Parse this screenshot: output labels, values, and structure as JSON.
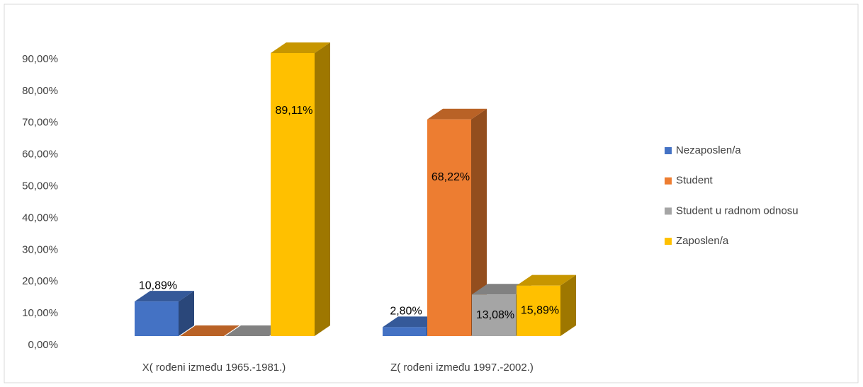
{
  "chart_data": {
    "type": "bar3d",
    "categories": [
      "X( rođeni između 1965.-1981.)",
      "Z( rođeni između 1997.-2002.)"
    ],
    "series": [
      {
        "name": "Nezaposlen/a",
        "color": "#4472c4",
        "values": [
          10.89,
          2.8
        ],
        "value_labels": [
          "10,89%",
          "2,80%"
        ]
      },
      {
        "name": "Student",
        "color": "#ed7d31",
        "values": [
          0,
          68.22
        ],
        "value_labels": [
          null,
          "68,22%"
        ]
      },
      {
        "name": "Student u radnom odnosu",
        "color": "#a5a5a5",
        "values": [
          0,
          13.08
        ],
        "value_labels": [
          null,
          "13,08%"
        ]
      },
      {
        "name": "Zaposlen/a",
        "color": "#ffc000",
        "values": [
          89.11,
          15.89
        ],
        "value_labels": [
          "89,11%",
          "15,89%"
        ]
      }
    ],
    "ylim": [
      0,
      90
    ],
    "yticks": [
      {
        "value": 0,
        "label": "0,00%"
      },
      {
        "value": 10,
        "label": "10,00%"
      },
      {
        "value": 20,
        "label": "20,00%"
      },
      {
        "value": 30,
        "label": "30,00%"
      },
      {
        "value": 40,
        "label": "40,00%"
      },
      {
        "value": 50,
        "label": "50,00%"
      },
      {
        "value": 60,
        "label": "60,00%"
      },
      {
        "value": 70,
        "label": "70,00%"
      },
      {
        "value": 80,
        "label": "80,00%"
      },
      {
        "value": 90,
        "label": "90,00%"
      }
    ],
    "legend": "right"
  }
}
